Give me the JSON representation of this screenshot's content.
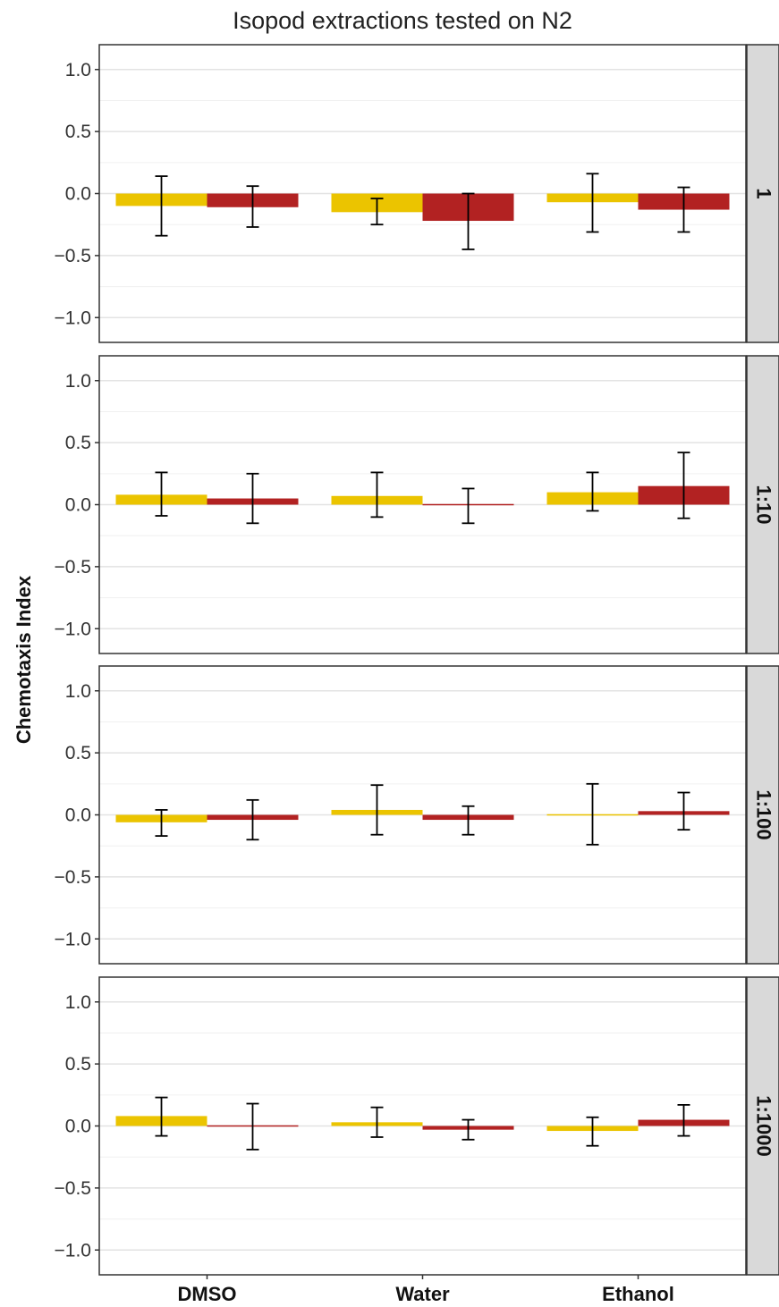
{
  "chart_data": {
    "type": "bar",
    "title": "Isopod extractions tested on N2",
    "ylabel": "Chemotaxis Index",
    "xlabel": "",
    "categories": [
      "DMSO",
      "Water",
      "Ethanol"
    ],
    "ylim": [
      -1.2,
      1.2
    ],
    "yticks": [
      1.0,
      0.5,
      0.0,
      -0.5,
      -1.0
    ],
    "ytick_labels": [
      "1.0",
      "0.5",
      "0.0",
      "−0.5",
      "−1.0"
    ],
    "grid": true,
    "legend": "none",
    "colors": {
      "series_a": "#EBC400",
      "series_b": "#B22222",
      "strip_bg": "#D9D9D9"
    },
    "panels": [
      {
        "label": "1",
        "series": [
          {
            "values": [
              -0.1,
              -0.15,
              -0.07
            ],
            "err_low": [
              -0.34,
              -0.25,
              -0.31
            ],
            "err_high": [
              0.14,
              -0.04,
              0.16
            ]
          },
          {
            "values": [
              -0.11,
              -0.22,
              -0.13
            ],
            "err_low": [
              -0.27,
              -0.45,
              -0.31
            ],
            "err_high": [
              0.06,
              0.0,
              0.05
            ]
          }
        ]
      },
      {
        "label": "1:10",
        "series": [
          {
            "values": [
              0.08,
              0.07,
              0.1
            ],
            "err_low": [
              -0.09,
              -0.1,
              -0.05
            ],
            "err_high": [
              0.26,
              0.26,
              0.26
            ]
          },
          {
            "values": [
              0.05,
              -0.01,
              0.15
            ],
            "err_low": [
              -0.15,
              -0.15,
              -0.11
            ],
            "err_high": [
              0.25,
              0.13,
              0.42
            ]
          }
        ]
      },
      {
        "label": "1:100",
        "series": [
          {
            "values": [
              -0.06,
              0.04,
              0.0
            ],
            "err_low": [
              -0.17,
              -0.16,
              -0.24
            ],
            "err_high": [
              0.04,
              0.24,
              0.25
            ]
          },
          {
            "values": [
              -0.04,
              -0.04,
              0.03
            ],
            "err_low": [
              -0.2,
              -0.16,
              -0.12
            ],
            "err_high": [
              0.12,
              0.07,
              0.18
            ]
          }
        ]
      },
      {
        "label": "1:1000",
        "series": [
          {
            "values": [
              0.08,
              0.03,
              -0.04
            ],
            "err_low": [
              -0.08,
              -0.09,
              -0.16
            ],
            "err_high": [
              0.23,
              0.15,
              0.07
            ]
          },
          {
            "values": [
              0.0,
              -0.03,
              0.05
            ],
            "err_low": [
              -0.19,
              -0.11,
              -0.08
            ],
            "err_high": [
              0.18,
              0.05,
              0.17
            ]
          }
        ]
      }
    ]
  }
}
